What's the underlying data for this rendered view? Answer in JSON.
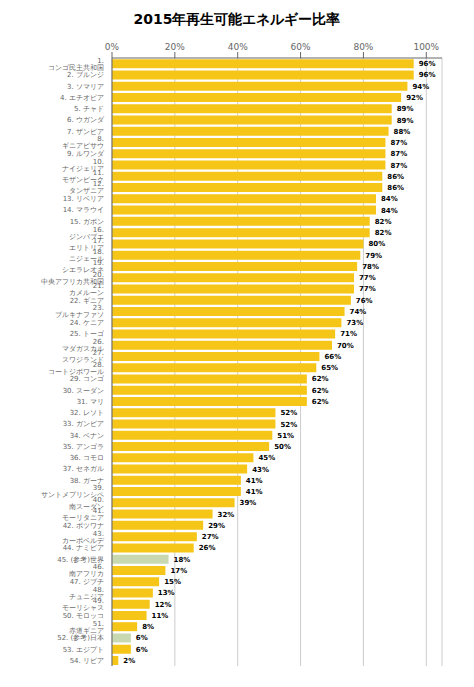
{
  "chart_data": {
    "type": "bar",
    "orientation": "horizontal",
    "title": "2015年再生可能エネルギー比率",
    "categories": [
      "1. コンゴ民主共和国",
      "2. ブルンジ",
      "3. ソマリア",
      "4. エチオピア",
      "5. チャド",
      "6. ウガンダ",
      "7. ザンビア",
      "8. ギニアビサウ",
      "9. ルワンダ",
      "10. ナイジェリア",
      "11. モザンビーク",
      "12. タンザニア",
      "13. リベリア",
      "14. マラウイ",
      "15. ガボン",
      "16. ジンバブエ",
      "17. エリトリア",
      "18. ニジェール",
      "19. シエラレオネ",
      "20. 中央アフリカ共和国",
      "21. カメルーン",
      "22. ギニア",
      "23. ブルキナファソ",
      "24. ケニア",
      "25. トーゴ",
      "26. マダガスカル",
      "27. スワジランド",
      "28. コートジボワール",
      "29. コンゴ",
      "30. スーダン",
      "31. マリ",
      "32. レソト",
      "33. ガンビア",
      "34. ベナン",
      "35. アンゴラ",
      "36. コモロ",
      "37. セネガル",
      "38. ガーナ",
      "39. サントメプリンシペ",
      "40. 南スーダン",
      "41. モーリタニア",
      "42. ボツワナ",
      "43. カーボベルデ",
      "44. ナミビア",
      "45. (参考)世界",
      "46. 南アフリカ",
      "47. ジブチ",
      "48. チュニジア",
      "49. モーリシャス",
      "50. モロッコ",
      "51. 赤道ギニア",
      "52. (参考)日本",
      "53. エジプト",
      "54. リビア"
    ],
    "values": [
      96,
      96,
      94,
      92,
      89,
      89,
      88,
      87,
      87,
      87,
      86,
      86,
      84,
      84,
      82,
      82,
      80,
      79,
      78,
      77,
      77,
      76,
      74,
      73,
      71,
      70,
      66,
      65,
      62,
      62,
      62,
      52,
      52,
      51,
      50,
      45,
      43,
      41,
      41,
      39,
      32,
      29,
      27,
      26,
      18,
      17,
      15,
      13,
      12,
      11,
      8,
      6,
      6,
      2
    ],
    "value_labels": [
      "96%",
      "96%",
      "94%",
      "92%",
      "89%",
      "89%",
      "88%",
      "87%",
      "87%",
      "87%",
      "86%",
      "86%",
      "84%",
      "84%",
      "82%",
      "82%",
      "80%",
      "79%",
      "78%",
      "77%",
      "77%",
      "76%",
      "74%",
      "73%",
      "71%",
      "70%",
      "66%",
      "65%",
      "62%",
      "62%",
      "62%",
      "52%",
      "52%",
      "51%",
      "50%",
      "45%",
      "43%",
      "41%",
      "41%",
      "39%",
      "32%",
      "29%",
      "27%",
      "26%",
      "18%",
      "17%",
      "15%",
      "13%",
      "12%",
      "11%",
      "8%",
      "6%",
      "6%",
      "2%"
    ],
    "colors": [
      "#F5C518",
      "#F5C518",
      "#F5C518",
      "#F5C518",
      "#F5C518",
      "#F5C518",
      "#F5C518",
      "#F5C518",
      "#F5C518",
      "#F5C518",
      "#F5C518",
      "#F5C518",
      "#F5C518",
      "#F5C518",
      "#F5C518",
      "#F5C518",
      "#F5C518",
      "#F5C518",
      "#F5C518",
      "#F5C518",
      "#F5C518",
      "#F5C518",
      "#F5C518",
      "#F5C518",
      "#F5C518",
      "#F5C518",
      "#F5C518",
      "#F5C518",
      "#F5C518",
      "#F5C518",
      "#F5C518",
      "#F5C518",
      "#F5C518",
      "#F5C518",
      "#F5C518",
      "#F5C518",
      "#F5C518",
      "#F5C518",
      "#F5C518",
      "#F5C518",
      "#F5C518",
      "#F5C518",
      "#F5C518",
      "#F5C518",
      "#C8D8B0",
      "#F5C518",
      "#F5C518",
      "#F5C518",
      "#F5C518",
      "#F5C518",
      "#F5C518",
      "#C8D8B0",
      "#F5C518",
      "#F5C518"
    ],
    "xlim": [
      0,
      105
    ],
    "xticks": [
      {
        "value": 0,
        "label": "0%"
      },
      {
        "value": 20,
        "label": "20%"
      },
      {
        "value": 40,
        "label": "40%"
      },
      {
        "value": 60,
        "label": "60%"
      },
      {
        "value": 80,
        "label": "80%"
      },
      {
        "value": 100,
        "label": "100%"
      }
    ],
    "grid": true,
    "data_labels": true
  }
}
